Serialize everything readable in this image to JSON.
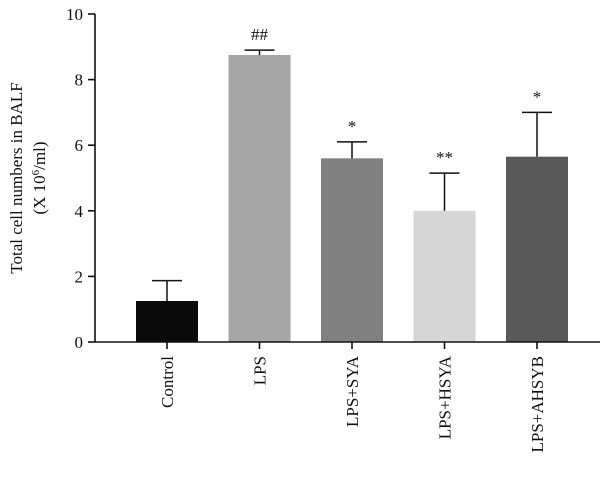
{
  "chart_data": {
    "type": "bar",
    "categories": [
      "Control",
      "LPS",
      "LPS+SYA",
      "LPS+HSYA",
      "LPS+AHSYB"
    ],
    "values": [
      1.25,
      8.75,
      5.6,
      4.0,
      5.65
    ],
    "errors": [
      0.62,
      0.15,
      0.5,
      1.15,
      1.35
    ],
    "significance": [
      "",
      "##",
      "*",
      "**",
      "*"
    ],
    "bar_colors": [
      "#0a0a0a",
      "#a6a6a6",
      "#808080",
      "#d6d6d6",
      "#595959"
    ],
    "ylabel_line1": "Total cell numbers in BALF",
    "ylabel_line2_prefix": "(X 10",
    "ylabel_line2_sup": "6",
    "ylabel_line2_suffix": "/ml)",
    "ylim": [
      0,
      10
    ],
    "yticks": [
      0,
      2,
      4,
      6,
      8,
      10
    ],
    "grid": false,
    "legend": "none"
  }
}
